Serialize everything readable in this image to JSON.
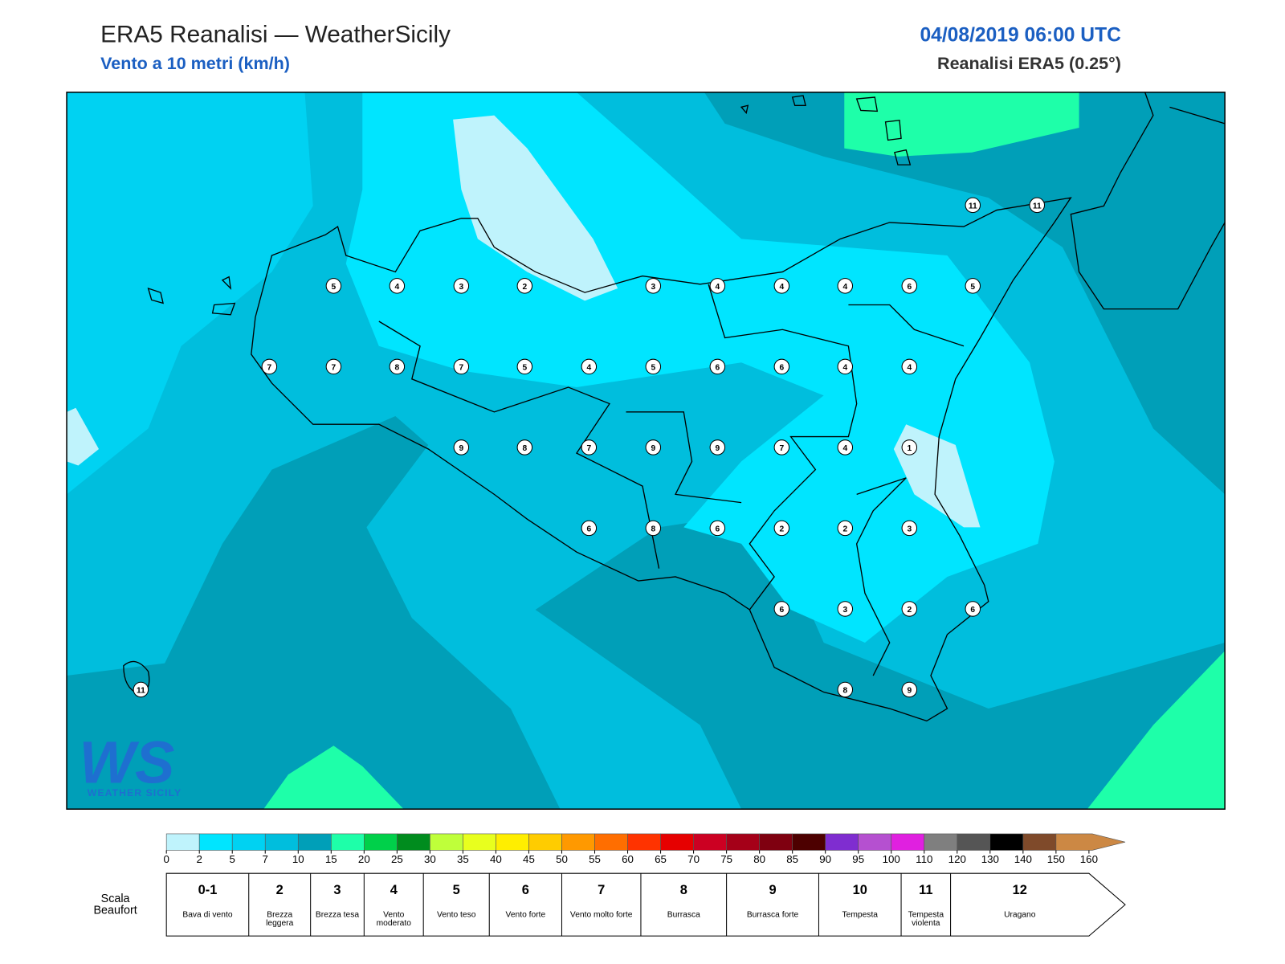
{
  "header": {
    "title": "ERA5 Reanalisi — WeatherSicily",
    "subtitle": "Vento a 10 metri (km/h)",
    "date": "04/08/2019 06:00 UTC",
    "source": "Reanalisi ERA5 (0.25°)"
  },
  "markers": [
    5,
    4,
    3,
    2,
    3,
    4,
    4,
    4,
    6,
    5,
    7,
    7,
    8,
    7,
    5,
    4,
    5,
    6,
    6,
    4,
    4,
    9,
    8,
    7,
    9,
    9,
    7,
    4,
    1,
    6,
    8,
    6,
    2,
    2,
    3,
    6,
    3,
    2,
    6,
    8,
    9,
    11,
    11,
    11
  ],
  "logo": {
    "mark": "WS",
    "text": "WEATHER SICILY"
  },
  "colorbar": {
    "ticks": [
      0,
      2,
      5,
      7,
      10,
      15,
      20,
      25,
      30,
      35,
      40,
      45,
      50,
      55,
      60,
      65,
      70,
      75,
      80,
      85,
      90,
      95,
      100,
      110,
      120,
      130,
      140,
      150,
      160
    ],
    "colors": [
      "#bff3fc",
      "#00e5ff",
      "#00d2f2",
      "#00bedd",
      "#009fb8",
      "#1effa9",
      "#00d04a",
      "#008c1e",
      "#bfff3a",
      "#e8ff1e",
      "#ffee00",
      "#ffcc00",
      "#ff9900",
      "#ff6e00",
      "#ff3300",
      "#e60000",
      "#cc0022",
      "#a50018",
      "#7f0010",
      "#4d0000",
      "#7f2dd0",
      "#b550d0",
      "#e020e0",
      "#7f7f7f",
      "#555555",
      "#000000",
      "#7f4a2a",
      "#cc8844"
    ]
  },
  "beaufort": {
    "title": "Scala Beaufort",
    "levels": [
      {
        "number": "0-1",
        "label": "Bava di vento"
      },
      {
        "number": "2",
        "label": "Brezza leggera"
      },
      {
        "number": "3",
        "label": "Brezza tesa"
      },
      {
        "number": "4",
        "label": "Vento moderato"
      },
      {
        "number": "5",
        "label": "Vento teso"
      },
      {
        "number": "6",
        "label": "Vento forte"
      },
      {
        "number": "7",
        "label": "Vento molto forte"
      },
      {
        "number": "8",
        "label": "Burrasca"
      },
      {
        "number": "9",
        "label": "Burrasca forte"
      },
      {
        "number": "10",
        "label": "Tempesta"
      },
      {
        "number": "11",
        "label": "Tempesta violenta"
      },
      {
        "number": "12",
        "label": "Uragano"
      }
    ]
  }
}
